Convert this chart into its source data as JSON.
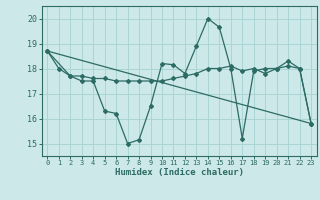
{
  "xlabel": "Humidex (Indice chaleur)",
  "bg_color": "#cce8e8",
  "grid_color": "#aad4d4",
  "line_color": "#2d6b65",
  "xlim": [
    -0.5,
    23.5
  ],
  "ylim": [
    14.5,
    20.5
  ],
  "xticks": [
    0,
    1,
    2,
    3,
    4,
    5,
    6,
    7,
    8,
    9,
    10,
    11,
    12,
    13,
    14,
    15,
    16,
    17,
    18,
    19,
    20,
    21,
    22,
    23
  ],
  "yticks": [
    15,
    16,
    17,
    18,
    19,
    20
  ],
  "line1_x": [
    0,
    1,
    2,
    3,
    4,
    5,
    6,
    7,
    8,
    9,
    10,
    11,
    12,
    13,
    14,
    15,
    16,
    17,
    18,
    19,
    20,
    21,
    22,
    23
  ],
  "line1_y": [
    18.7,
    18.0,
    17.7,
    17.5,
    17.5,
    16.3,
    16.2,
    15.0,
    15.15,
    16.5,
    18.2,
    18.15,
    17.8,
    18.9,
    20.0,
    19.65,
    18.0,
    15.2,
    17.9,
    18.0,
    18.0,
    18.3,
    18.0,
    15.8
  ],
  "line2_x": [
    0,
    2,
    3,
    4,
    5,
    6,
    7,
    8,
    9,
    10,
    11,
    12,
    13,
    14,
    15,
    16,
    17,
    18,
    19,
    20,
    21,
    22,
    23
  ],
  "line2_y": [
    18.7,
    17.7,
    17.7,
    17.6,
    17.6,
    17.5,
    17.5,
    17.5,
    17.5,
    17.5,
    17.6,
    17.7,
    17.8,
    18.0,
    18.0,
    18.1,
    17.9,
    18.0,
    17.8,
    18.0,
    18.1,
    18.0,
    15.8
  ],
  "line3_x": [
    0,
    23
  ],
  "line3_y": [
    18.7,
    15.8
  ]
}
